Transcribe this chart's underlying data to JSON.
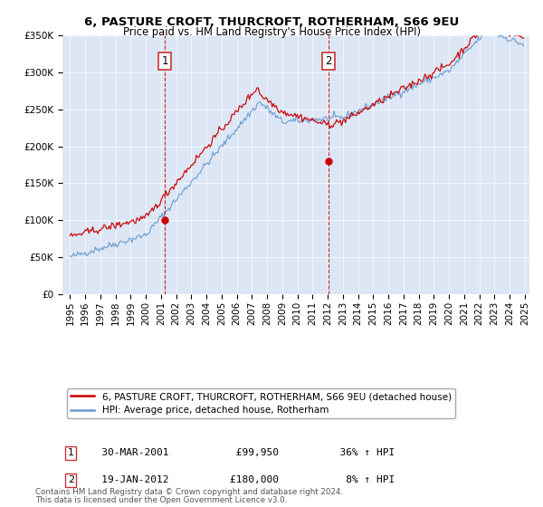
{
  "title": "6, PASTURE CROFT, THURCROFT, ROTHERHAM, S66 9EU",
  "subtitle": "Price paid vs. HM Land Registry's House Price Index (HPI)",
  "legend_line1": "6, PASTURE CROFT, THURCROFT, ROTHERHAM, S66 9EU (detached house)",
  "legend_line2": "HPI: Average price, detached house, Rotherham",
  "footer_line1": "Contains HM Land Registry data © Crown copyright and database right 2024.",
  "footer_line2": "This data is licensed under the Open Government Licence v3.0.",
  "sale1_date_str": "30-MAR-2001",
  "sale1_price": 99950,
  "sale1_price_str": "£99,950",
  "sale1_hpi_str": "36% ↑ HPI",
  "sale1_num": 2001.247,
  "sale2_date_str": "19-JAN-2012",
  "sale2_price": 180000,
  "sale2_price_str": "£180,000",
  "sale2_hpi_str": "8% ↑ HPI",
  "sale2_num": 2012.054,
  "ylim": [
    0,
    350000
  ],
  "yticks": [
    0,
    50000,
    100000,
    150000,
    200000,
    250000,
    300000,
    350000
  ],
  "xlim_start": 1994.5,
  "xlim_end": 2025.3,
  "plot_bg": "#dce6f5",
  "red_color": "#cc0000",
  "blue_color": "#6699cc",
  "marker_box_color": "#cc3333"
}
